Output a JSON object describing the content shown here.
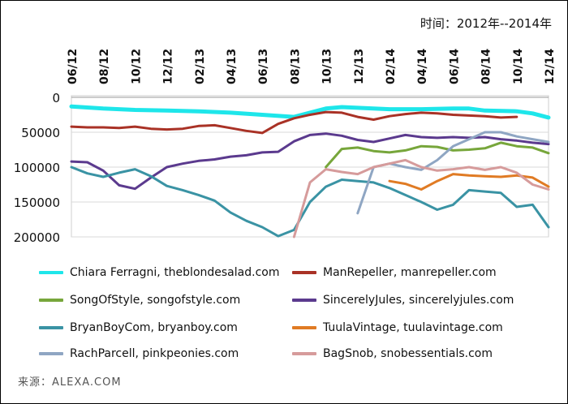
{
  "header": {
    "time_label": "时间：2012年--2014年"
  },
  "footer": {
    "source_label": "来源：ALEXA.COM"
  },
  "chart_data": {
    "type": "line",
    "y_inverted": true,
    "ylim": [
      0,
      200000
    ],
    "yticks": [
      "0",
      "50000",
      "100000",
      "150000",
      "200000"
    ],
    "ytick_values": [
      0,
      50000,
      100000,
      150000,
      200000
    ],
    "x_range": [
      0,
      30
    ],
    "xtick_labels": [
      "06/12",
      "08/12",
      "10/12",
      "12/12",
      "02/13",
      "04/13",
      "06/13",
      "08/13",
      "10/13",
      "12/13",
      "02/14",
      "04/14",
      "06/14",
      "08/14",
      "10/14",
      "12/14"
    ],
    "grid": "horizontal",
    "legend_position": "bottom",
    "series": [
      {
        "name": "Chiara Ferragni, theblondesalad.com",
        "color": "#1ee6ea",
        "points": [
          [
            0,
            13000
          ],
          [
            2,
            16000
          ],
          [
            4,
            18000
          ],
          [
            6,
            19000
          ],
          [
            8,
            20000
          ],
          [
            10,
            22000
          ],
          [
            12,
            25000
          ],
          [
            14,
            28000
          ],
          [
            15,
            22000
          ],
          [
            16,
            16000
          ],
          [
            17,
            14000
          ],
          [
            18,
            15000
          ],
          [
            20,
            17000
          ],
          [
            22,
            17000
          ],
          [
            24,
            16000
          ],
          [
            25,
            16000
          ],
          [
            26,
            19000
          ],
          [
            28,
            20000
          ],
          [
            29,
            23000
          ],
          [
            30,
            29000
          ]
        ]
      },
      {
        "name": "ManRepeller, manrepeller.com",
        "color": "#a93226",
        "points": [
          [
            0,
            42000
          ],
          [
            1,
            43000
          ],
          [
            2,
            43000
          ],
          [
            3,
            44000
          ],
          [
            4,
            42000
          ],
          [
            5,
            45000
          ],
          [
            6,
            46000
          ],
          [
            7,
            45000
          ],
          [
            8,
            41000
          ],
          [
            9,
            40000
          ],
          [
            10,
            44000
          ],
          [
            11,
            48000
          ],
          [
            12,
            51000
          ],
          [
            13,
            38000
          ],
          [
            14,
            30000
          ],
          [
            15,
            25000
          ],
          [
            16,
            21000
          ],
          [
            17,
            22000
          ],
          [
            18,
            28000
          ],
          [
            19,
            32000
          ],
          [
            20,
            27000
          ],
          [
            21,
            24000
          ],
          [
            22,
            22000
          ],
          [
            23,
            23000
          ],
          [
            24,
            25000
          ],
          [
            25,
            26000
          ],
          [
            26,
            27000
          ],
          [
            27,
            29000
          ],
          [
            28,
            28000
          ]
        ]
      },
      {
        "name": "SongOfStyle, songofstyle.com",
        "color": "#77a63b",
        "points": [
          [
            16,
            100000
          ],
          [
            17,
            74000
          ],
          [
            18,
            72000
          ],
          [
            19,
            77000
          ],
          [
            20,
            79000
          ],
          [
            21,
            76000
          ],
          [
            22,
            70000
          ],
          [
            23,
            71000
          ],
          [
            24,
            76000
          ],
          [
            25,
            75000
          ],
          [
            26,
            73000
          ],
          [
            27,
            65000
          ],
          [
            28,
            70000
          ],
          [
            29,
            72000
          ],
          [
            30,
            80000
          ]
        ]
      },
      {
        "name": "SincerelyJules, sincerelyjules.com",
        "color": "#5b3a8e",
        "points": [
          [
            0,
            92000
          ],
          [
            1,
            93000
          ],
          [
            2,
            105000
          ],
          [
            3,
            126000
          ],
          [
            4,
            131000
          ],
          [
            5,
            115000
          ],
          [
            6,
            100000
          ],
          [
            7,
            95000
          ],
          [
            8,
            91000
          ],
          [
            9,
            89000
          ],
          [
            10,
            85000
          ],
          [
            11,
            83000
          ],
          [
            12,
            79000
          ],
          [
            13,
            78000
          ],
          [
            14,
            63000
          ],
          [
            15,
            54000
          ],
          [
            16,
            52000
          ],
          [
            17,
            55000
          ],
          [
            18,
            61000
          ],
          [
            19,
            64000
          ],
          [
            20,
            59000
          ],
          [
            21,
            54000
          ],
          [
            22,
            57000
          ],
          [
            23,
            58000
          ],
          [
            24,
            57000
          ],
          [
            25,
            58000
          ],
          [
            26,
            57000
          ],
          [
            27,
            60000
          ],
          [
            28,
            62000
          ],
          [
            29,
            65000
          ],
          [
            30,
            67000
          ]
        ]
      },
      {
        "name": "BryanBoyCom, bryanboy.com",
        "color": "#3a93a4",
        "points": [
          [
            0,
            100000
          ],
          [
            1,
            109000
          ],
          [
            2,
            114000
          ],
          [
            3,
            108000
          ],
          [
            4,
            103000
          ],
          [
            5,
            113000
          ],
          [
            6,
            127000
          ],
          [
            7,
            133000
          ],
          [
            8,
            140000
          ],
          [
            9,
            148000
          ],
          [
            10,
            165000
          ],
          [
            11,
            177000
          ],
          [
            12,
            186000
          ],
          [
            13,
            199000
          ],
          [
            14,
            190000
          ],
          [
            15,
            150000
          ],
          [
            16,
            128000
          ],
          [
            17,
            118000
          ],
          [
            18,
            120000
          ],
          [
            19,
            122000
          ],
          [
            20,
            130000
          ],
          [
            21,
            140000
          ],
          [
            22,
            150000
          ],
          [
            23,
            161000
          ],
          [
            24,
            154000
          ],
          [
            25,
            133000
          ],
          [
            26,
            135000
          ],
          [
            27,
            137000
          ],
          [
            28,
            157000
          ],
          [
            29,
            154000
          ],
          [
            30,
            186000
          ]
        ]
      },
      {
        "name": "TuulaVintage, tuulavintage.com",
        "color": "#e07b24",
        "points": [
          [
            20,
            120000
          ],
          [
            21,
            124000
          ],
          [
            22,
            132000
          ],
          [
            23,
            120000
          ],
          [
            24,
            110000
          ],
          [
            25,
            112000
          ],
          [
            26,
            113000
          ],
          [
            27,
            114000
          ],
          [
            28,
            112000
          ],
          [
            29,
            115000
          ],
          [
            30,
            128000
          ]
        ]
      },
      {
        "name": "RachParcell, pinkpeonies.com",
        "color": "#8fa6c3",
        "points": [
          [
            18,
            166000
          ],
          [
            19,
            100000
          ],
          [
            20,
            95000
          ],
          [
            21,
            100000
          ],
          [
            22,
            104000
          ],
          [
            23,
            90000
          ],
          [
            24,
            70000
          ],
          [
            25,
            60000
          ],
          [
            26,
            50000
          ],
          [
            27,
            50000
          ],
          [
            28,
            56000
          ],
          [
            29,
            60000
          ],
          [
            30,
            64000
          ]
        ]
      },
      {
        "name": "BagSnob, snobessentials.com",
        "color": "#d69b9b",
        "points": [
          [
            14,
            200000
          ],
          [
            15,
            122000
          ],
          [
            16,
            103000
          ],
          [
            17,
            107000
          ],
          [
            18,
            110000
          ],
          [
            19,
            100000
          ],
          [
            20,
            95000
          ],
          [
            21,
            90000
          ],
          [
            22,
            100000
          ],
          [
            23,
            105000
          ],
          [
            24,
            103000
          ],
          [
            25,
            100000
          ],
          [
            26,
            104000
          ],
          [
            27,
            100000
          ],
          [
            28,
            108000
          ],
          [
            29,
            125000
          ],
          [
            30,
            132000
          ]
        ]
      }
    ]
  }
}
